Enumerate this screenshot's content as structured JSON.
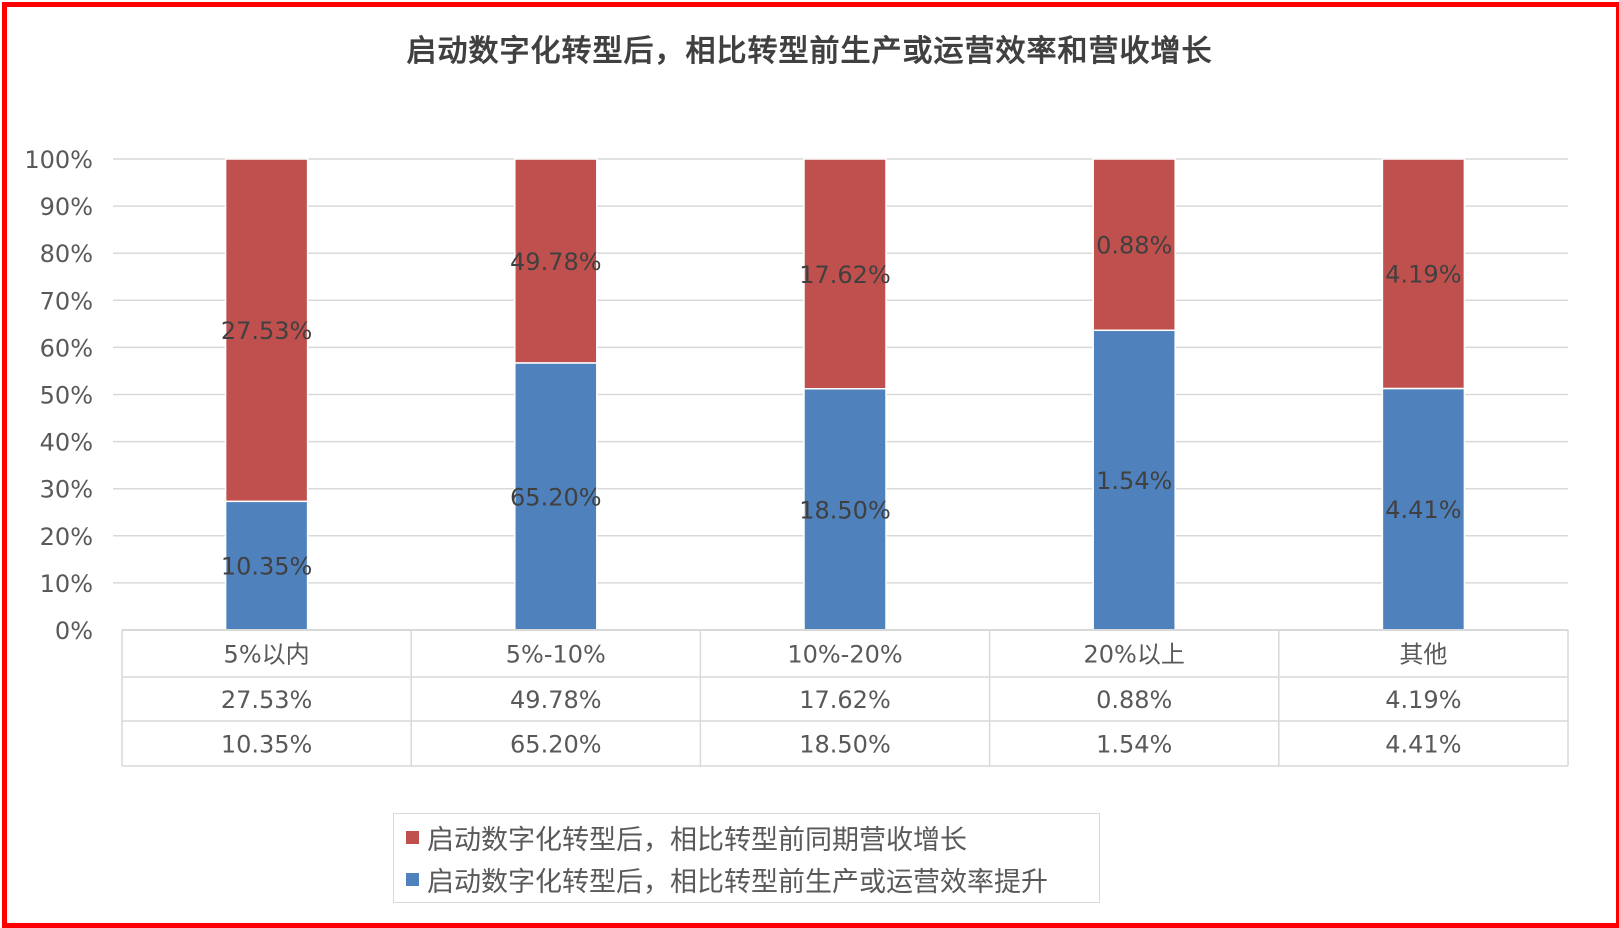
{
  "chart_data": {
    "type": "bar",
    "stacked": "percent",
    "title": "启动数字化转型后，相比转型前生产或运营效率和营收增长",
    "categories": [
      "5%以内",
      "5%-10%",
      "10%-20%",
      "20%以上",
      "其他"
    ],
    "series": [
      {
        "name": "启动数字化转型后，相比转型前同期营收增长",
        "values": [
          27.53,
          49.78,
          17.62,
          0.88,
          4.19
        ],
        "labels": [
          "27.53%",
          "49.78%",
          "17.62%",
          "0.88%",
          "4.19%"
        ],
        "color": "#c0504d"
      },
      {
        "name": "启动数字化转型后，相比转型前生产或运营效率提升",
        "values": [
          10.35,
          65.2,
          18.5,
          1.54,
          4.41
        ],
        "labels": [
          "10.35%",
          "65.20%",
          "18.50%",
          "1.54%",
          "4.41%"
        ],
        "color": "#4f81bd"
      }
    ],
    "stack_order_bottom_to_top": [
      1,
      0
    ],
    "yticks": [
      "0%",
      "10%",
      "20%",
      "30%",
      "40%",
      "50%",
      "60%",
      "70%",
      "80%",
      "90%",
      "100%"
    ],
    "ylim": [
      0,
      100
    ],
    "grid": true,
    "data_table": true,
    "legend_position": "bottom"
  },
  "colors": {
    "frame": "#ff0000",
    "grid": "#d9d9d9",
    "text": "#595959",
    "label": "#404040"
  }
}
